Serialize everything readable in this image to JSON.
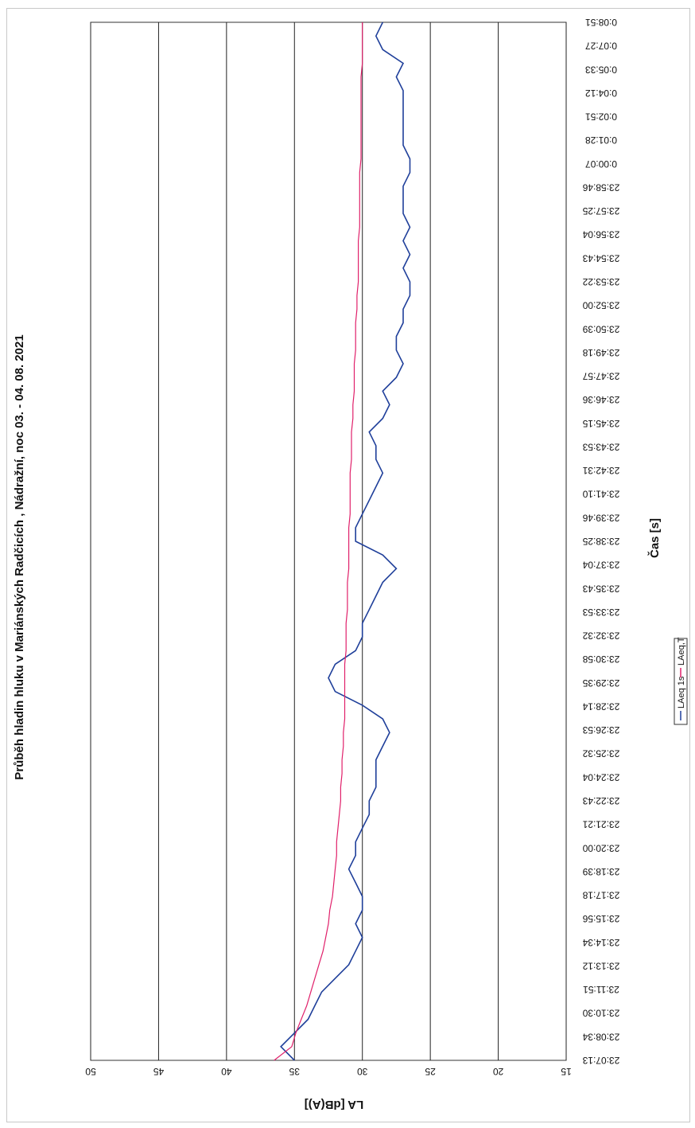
{
  "chart_data": {
    "type": "line",
    "title": "Průběh hladin hluku v Mariánských Radčicích , Nádražní, noc 03. - 04. 08. 2021",
    "xlabel": "Čas [s]",
    "ylabel": "LA [dB(A)]",
    "ylim": [
      15,
      50
    ],
    "yticks": [
      "50",
      "45",
      "40",
      "35",
      "30",
      "25",
      "20",
      "15"
    ],
    "grid": true,
    "x_tick_labels": [
      "23:07:13",
      "23:08:34",
      "23:10:30",
      "23:11:51",
      "23:13:12",
      "23:14:34",
      "23:15:56",
      "23:17:18",
      "23:18:39",
      "23:20:00",
      "23:21:21",
      "23:22:43",
      "23:24:04",
      "23:25:32",
      "23:26:53",
      "23:28:14",
      "23:29:35",
      "23:30:58",
      "23:32:32",
      "23:33:53",
      "23:35:43",
      "23:37:04",
      "23:38:25",
      "23:39:46",
      "23:41:10",
      "23:42:31",
      "23:43:53",
      "23:45:15",
      "23:46:36",
      "23:47:57",
      "23:49:18",
      "23:50:39",
      "23:52:00",
      "23:53:22",
      "23:54:43",
      "23:56:04",
      "23:57:25",
      "23:58:46",
      "0:00:07",
      "0:01:28",
      "0:02:51",
      "0:04:12",
      "0:05:33",
      "0:07:27",
      "0:08:51"
    ],
    "legend": {
      "placement": "bottom",
      "entries": [
        "LAeq 1s",
        "LAeq,T"
      ]
    },
    "series": [
      {
        "name": "LAeq 1s",
        "color": "#1f3f9a",
        "values": [
          35.0,
          36.0,
          35.0,
          34.0,
          33.5,
          33.0,
          32.0,
          31.0,
          30.5,
          30.0,
          30.5,
          30.0,
          30.0,
          30.5,
          31.0,
          30.5,
          30.5,
          30.0,
          29.5,
          29.5,
          29.0,
          29.0,
          29.0,
          28.5,
          28.0,
          28.5,
          30.0,
          32.0,
          32.5,
          32.0,
          30.5,
          30.0,
          30.0,
          29.5,
          29.0,
          28.5,
          27.5,
          28.5,
          30.5,
          30.5,
          30.0,
          29.5,
          29.0,
          28.5,
          29.0,
          29.0,
          29.5,
          28.5,
          28.0,
          28.5,
          27.5,
          27.0,
          27.5,
          27.5,
          27.0,
          27.0,
          26.5,
          26.5,
          27.0,
          26.5,
          27.0,
          26.5,
          27.0,
          27.0,
          27.0,
          26.5,
          26.5,
          27.0,
          27.0,
          27.0,
          27.0,
          27.0,
          27.5,
          27.0,
          28.5,
          29.0,
          28.5
        ]
      },
      {
        "name": "LAeq,T",
        "color": "#e0206a",
        "values": [
          36.5,
          35.2,
          34.9,
          34.5,
          34.1,
          33.8,
          33.5,
          33.2,
          32.9,
          32.7,
          32.5,
          32.4,
          32.2,
          32.1,
          32.0,
          31.9,
          31.9,
          31.8,
          31.7,
          31.6,
          31.6,
          31.5,
          31.5,
          31.4,
          31.4,
          31.3,
          31.3,
          31.3,
          31.3,
          31.3,
          31.2,
          31.2,
          31.2,
          31.1,
          31.1,
          31.1,
          31.0,
          31.0,
          31.0,
          31.0,
          30.9,
          30.9,
          30.9,
          30.9,
          30.8,
          30.8,
          30.8,
          30.7,
          30.7,
          30.6,
          30.6,
          30.6,
          30.5,
          30.5,
          30.5,
          30.4,
          30.4,
          30.3,
          30.3,
          30.3,
          30.3,
          30.2,
          30.2,
          30.2,
          30.2,
          30.2,
          30.1,
          30.1,
          30.1,
          30.1,
          30.1,
          30.1,
          30.1,
          30.0,
          30.0,
          30.0,
          30.0
        ]
      }
    ]
  }
}
